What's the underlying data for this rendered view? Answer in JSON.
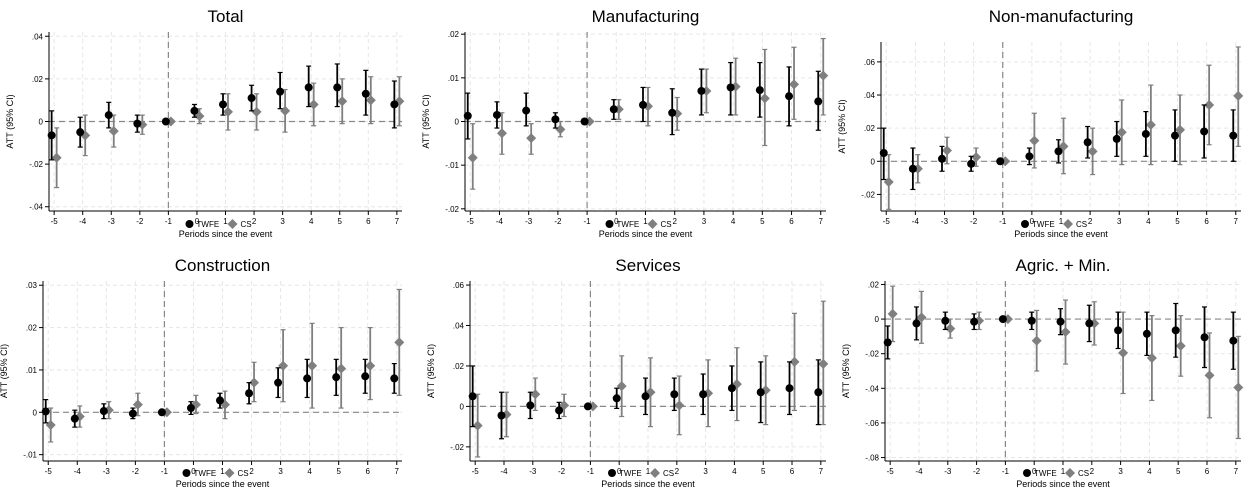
{
  "shared": {
    "ylabel": "ATT (95% CI)",
    "xlabel": "Periods since the event",
    "x_ticks": [
      -5,
      -4,
      -3,
      -2,
      -1,
      0,
      1,
      2,
      3,
      4,
      5,
      6,
      7
    ],
    "event_line_x": -1,
    "legend": [
      {
        "name": "TWFE",
        "marker": "circle",
        "color": "#000000"
      },
      {
        "name": "CS",
        "marker": "diamond",
        "color": "#7f7f7f"
      }
    ],
    "colors": {
      "twfe": "#000000",
      "cs": "#7f7f7f",
      "grid": "#e6e6e6",
      "refline": "#888888"
    }
  },
  "chart_data": [
    {
      "type": "scatter",
      "title": "Total",
      "xlabel": "Periods since the event",
      "ylabel": "ATT (95% CI)",
      "x": [
        -5,
        -4,
        -3,
        -2,
        -1,
        0,
        1,
        2,
        3,
        4,
        5,
        6,
        7
      ],
      "ylim": [
        -0.042,
        0.042
      ],
      "y_ticks": [
        -0.04,
        -0.02,
        0,
        0.02,
        0.04
      ],
      "y_tick_labels": [
        "-.04",
        "-.02",
        "0",
        ".02",
        ".04"
      ],
      "series": [
        {
          "name": "TWFE",
          "marker": "circle",
          "values": [
            -0.0065,
            -0.005,
            0.003,
            -0.001,
            0,
            0.005,
            0.008,
            0.011,
            0.014,
            0.016,
            0.016,
            0.013,
            0.008
          ],
          "ci_low": [
            -0.018,
            -0.012,
            -0.003,
            -0.005,
            0,
            0.002,
            0.003,
            0.005,
            0.006,
            0.007,
            0.007,
            0.003,
            -0.003
          ],
          "ci_high": [
            0.005,
            0.002,
            0.009,
            0.003,
            0,
            0.008,
            0.013,
            0.017,
            0.023,
            0.026,
            0.027,
            0.024,
            0.019
          ]
        },
        {
          "name": "CS",
          "marker": "diamond",
          "values": [
            -0.017,
            -0.0065,
            -0.0045,
            -0.0015,
            0,
            0.0025,
            0.0045,
            0.0045,
            0.005,
            0.008,
            0.0095,
            0.01,
            0.0095
          ],
          "ci_low": [
            -0.031,
            -0.016,
            -0.012,
            -0.006,
            0,
            -0.001,
            -0.004,
            -0.004,
            -0.005,
            -0.002,
            -0.001,
            -0.001,
            -0.002
          ],
          "ci_high": [
            -0.003,
            0.003,
            0.003,
            0.003,
            0,
            0.006,
            0.013,
            0.013,
            0.015,
            0.018,
            0.02,
            0.021,
            0.021
          ]
        }
      ]
    },
    {
      "type": "scatter",
      "title": "Manufacturing",
      "xlabel": "Periods since the event",
      "ylabel": "ATT (95% CI)",
      "x": [
        -5,
        -4,
        -3,
        -2,
        -1,
        0,
        1,
        2,
        3,
        4,
        5,
        6,
        7
      ],
      "ylim": [
        -0.0205,
        0.0205
      ],
      "y_ticks": [
        -0.02,
        -0.01,
        0,
        0.01,
        0.02
      ],
      "y_tick_labels": [
        "-.02",
        "-.01",
        "0",
        ".01",
        ".02"
      ],
      "series": [
        {
          "name": "TWFE",
          "marker": "circle",
          "values": [
            0.0013,
            0.0015,
            0.0025,
            0.0005,
            0,
            0.0028,
            0.0038,
            0.002,
            0.007,
            0.0078,
            0.0072,
            0.0058,
            0.0046
          ],
          "ci_low": [
            -0.004,
            -0.0015,
            -0.001,
            -0.0015,
            0,
            0.0005,
            0.0,
            -0.003,
            0.0015,
            0.0015,
            0.001,
            -0.001,
            -0.002
          ],
          "ci_high": [
            0.0065,
            0.0045,
            0.0065,
            0.002,
            0,
            0.005,
            0.0078,
            0.0075,
            0.012,
            0.0135,
            0.0135,
            0.0125,
            0.0115
          ]
        },
        {
          "name": "CS",
          "marker": "diamond",
          "values": [
            -0.0083,
            -0.0027,
            -0.0038,
            -0.0018,
            0,
            0.0028,
            0.0035,
            0.0018,
            0.007,
            0.008,
            0.0053,
            0.0085,
            0.0105
          ],
          "ci_low": [
            -0.0155,
            -0.0075,
            -0.0075,
            -0.0035,
            0,
            0.0005,
            -0.001,
            -0.002,
            0.002,
            0.0015,
            -0.0055,
            0.0005,
            0.0015
          ],
          "ci_high": [
            -0.0005,
            0.002,
            -0.0005,
            0.0,
            0,
            0.005,
            0.0078,
            0.0055,
            0.012,
            0.0145,
            0.0165,
            0.017,
            0.019
          ]
        }
      ]
    },
    {
      "type": "scatter",
      "title": "Non-manufacturing",
      "xlabel": "Periods since the event",
      "ylabel": "ATT (95% CI)",
      "x": [
        -5,
        -4,
        -3,
        -2,
        -1,
        0,
        1,
        2,
        3,
        4,
        5,
        6,
        7
      ],
      "ylim": [
        -0.03,
        0.072
      ],
      "y_ticks": [
        -0.02,
        0,
        0.02,
        0.04,
        0.06
      ],
      "y_tick_labels": [
        "-.02",
        "0",
        ".02",
        ".04",
        ".06"
      ],
      "series": [
        {
          "name": "TWFE",
          "marker": "circle",
          "values": [
            0.005,
            -0.0045,
            0.0015,
            -0.0015,
            0,
            0.003,
            0.006,
            0.0115,
            0.0135,
            0.0165,
            0.0155,
            0.018,
            0.0155
          ],
          "ci_low": [
            -0.011,
            -0.017,
            -0.006,
            -0.006,
            0,
            -0.002,
            -0.001,
            0.002,
            0.003,
            0.003,
            0.0,
            0.002,
            0.0
          ],
          "ci_high": [
            0.02,
            0.008,
            0.009,
            0.003,
            0,
            0.008,
            0.013,
            0.021,
            0.024,
            0.03,
            0.031,
            0.034,
            0.031
          ]
        },
        {
          "name": "CS",
          "marker": "diamond",
          "values": [
            -0.0125,
            -0.0045,
            0.0065,
            0.0025,
            0,
            0.0125,
            0.009,
            0.006,
            0.0175,
            0.022,
            0.019,
            0.034,
            0.0395
          ],
          "ci_low": [
            -0.029,
            -0.013,
            -0.0015,
            -0.003,
            0,
            -0.004,
            -0.0075,
            -0.008,
            -0.002,
            -0.002,
            -0.002,
            0.01,
            0.009
          ],
          "ci_high": [
            0.004,
            0.004,
            0.0145,
            0.008,
            0,
            0.029,
            0.026,
            0.02,
            0.037,
            0.046,
            0.04,
            0.058,
            0.069
          ]
        }
      ]
    },
    {
      "type": "scatter",
      "title": "Construction",
      "xlabel": "Periods since the event",
      "ylabel": "ATT (95% CI)",
      "x": [
        -5,
        -4,
        -3,
        -2,
        -1,
        0,
        1,
        2,
        3,
        4,
        5,
        6,
        7
      ],
      "ylim": [
        -0.0115,
        0.031
      ],
      "y_ticks": [
        -0.01,
        0,
        0.01,
        0.02,
        0.03
      ],
      "y_tick_labels": [
        "-.01",
        "0",
        ".01",
        ".02",
        ".03"
      ],
      "series": [
        {
          "name": "TWFE",
          "marker": "circle",
          "values": [
            0.0002,
            -0.0015,
            0.0003,
            -0.0003,
            0,
            0.001,
            0.0028,
            0.0045,
            0.007,
            0.008,
            0.0083,
            0.0085,
            0.008
          ],
          "ci_low": [
            -0.0025,
            -0.0035,
            -0.0015,
            -0.0015,
            0,
            -0.0005,
            0.001,
            0.002,
            0.0035,
            0.0035,
            0.004,
            0.0045,
            0.0045
          ],
          "ci_high": [
            0.003,
            0.0005,
            0.002,
            0.001,
            0,
            0.0025,
            0.0045,
            0.007,
            0.0105,
            0.0125,
            0.0125,
            0.0125,
            0.0115
          ]
        },
        {
          "name": "CS",
          "marker": "diamond",
          "values": [
            -0.003,
            -0.001,
            0.0005,
            0.0018,
            0,
            0.0018,
            0.0018,
            0.007,
            0.011,
            0.011,
            0.0103,
            0.011,
            0.0165
          ],
          "ci_low": [
            -0.007,
            -0.0035,
            -0.0015,
            -0.0008,
            0,
            -0.0003,
            -0.0015,
            0.0025,
            0.0025,
            0.001,
            0.001,
            0.003,
            0.004
          ],
          "ci_high": [
            0.001,
            0.0015,
            0.0025,
            0.0045,
            0,
            0.004,
            0.005,
            0.0118,
            0.0195,
            0.021,
            0.02,
            0.02,
            0.029
          ]
        }
      ]
    },
    {
      "type": "scatter",
      "title": "Services",
      "xlabel": "Periods since the event",
      "ylabel": "ATT (95% CI)",
      "x": [
        -5,
        -4,
        -3,
        -2,
        -1,
        0,
        1,
        2,
        3,
        4,
        5,
        6,
        7
      ],
      "ylim": [
        -0.027,
        0.062
      ],
      "y_ticks": [
        -0.02,
        0,
        0.02,
        0.04,
        0.06
      ],
      "y_tick_labels": [
        "-.02",
        "0",
        ".02",
        ".04",
        ".06"
      ],
      "series": [
        {
          "name": "TWFE",
          "marker": "circle",
          "values": [
            0.005,
            -0.0045,
            0.0005,
            -0.002,
            0,
            0.004,
            0.005,
            0.006,
            0.006,
            0.009,
            0.007,
            0.009,
            0.007
          ],
          "ci_low": [
            -0.01,
            -0.016,
            -0.006,
            -0.006,
            0,
            -0.001,
            -0.004,
            -0.002,
            -0.004,
            -0.002,
            -0.008,
            -0.004,
            -0.009
          ],
          "ci_high": [
            0.02,
            0.007,
            0.007,
            0.002,
            0,
            0.009,
            0.014,
            0.014,
            0.016,
            0.02,
            0.022,
            0.022,
            0.023
          ]
        },
        {
          "name": "CS",
          "marker": "diamond",
          "values": [
            -0.0095,
            -0.004,
            0.006,
            0.0005,
            0,
            0.01,
            0.007,
            0.0005,
            0.0065,
            0.011,
            0.008,
            0.022,
            0.021
          ],
          "ci_low": [
            -0.025,
            -0.015,
            -0.002,
            -0.005,
            0,
            -0.005,
            -0.01,
            -0.014,
            -0.01,
            -0.007,
            -0.009,
            -0.002,
            -0.009
          ],
          "ci_high": [
            0.006,
            0.007,
            0.014,
            0.006,
            0,
            0.025,
            0.024,
            0.015,
            0.023,
            0.029,
            0.025,
            0.046,
            0.052
          ]
        }
      ]
    },
    {
      "type": "scatter",
      "title": "Agric. + Min.",
      "xlabel": "Periods since the event",
      "ylabel": "ATT (95% CI)",
      "x": [
        -5,
        -4,
        -3,
        -2,
        -1,
        0,
        1,
        2,
        3,
        4,
        5,
        6,
        7
      ],
      "ylim": [
        -0.082,
        0.022
      ],
      "y_ticks": [
        -0.08,
        -0.06,
        -0.04,
        -0.02,
        0,
        0.02
      ],
      "y_tick_labels": [
        "-.08",
        "-.06",
        "-.04",
        "-.02",
        "0",
        ".02"
      ],
      "series": [
        {
          "name": "TWFE",
          "marker": "circle",
          "values": [
            -0.0135,
            -0.0025,
            -0.001,
            -0.0015,
            0,
            -0.001,
            -0.0015,
            -0.0025,
            -0.0065,
            -0.0085,
            -0.0065,
            -0.0105,
            -0.0125
          ],
          "ci_low": [
            -0.023,
            -0.012,
            -0.006,
            -0.006,
            0,
            -0.006,
            -0.009,
            -0.013,
            -0.017,
            -0.021,
            -0.022,
            -0.028,
            -0.029
          ],
          "ci_high": [
            -0.004,
            0.007,
            0.004,
            0.003,
            0,
            0.004,
            0.006,
            0.008,
            0.004,
            0.004,
            0.009,
            0.007,
            0.004
          ]
        },
        {
          "name": "CS",
          "marker": "diamond",
          "values": [
            0.003,
            0.001,
            -0.0055,
            -0.001,
            0,
            -0.0125,
            -0.0075,
            -0.0025,
            -0.0195,
            -0.0225,
            -0.0155,
            -0.0325,
            -0.0395
          ],
          "ci_low": [
            -0.013,
            -0.014,
            -0.011,
            -0.006,
            0,
            -0.03,
            -0.026,
            -0.015,
            -0.043,
            -0.047,
            -0.033,
            -0.057,
            -0.069
          ],
          "ci_high": [
            0.019,
            0.016,
            0.0,
            0.004,
            0,
            0.005,
            0.011,
            0.01,
            0.004,
            0.002,
            0.002,
            -0.008,
            -0.01
          ]
        }
      ]
    }
  ]
}
